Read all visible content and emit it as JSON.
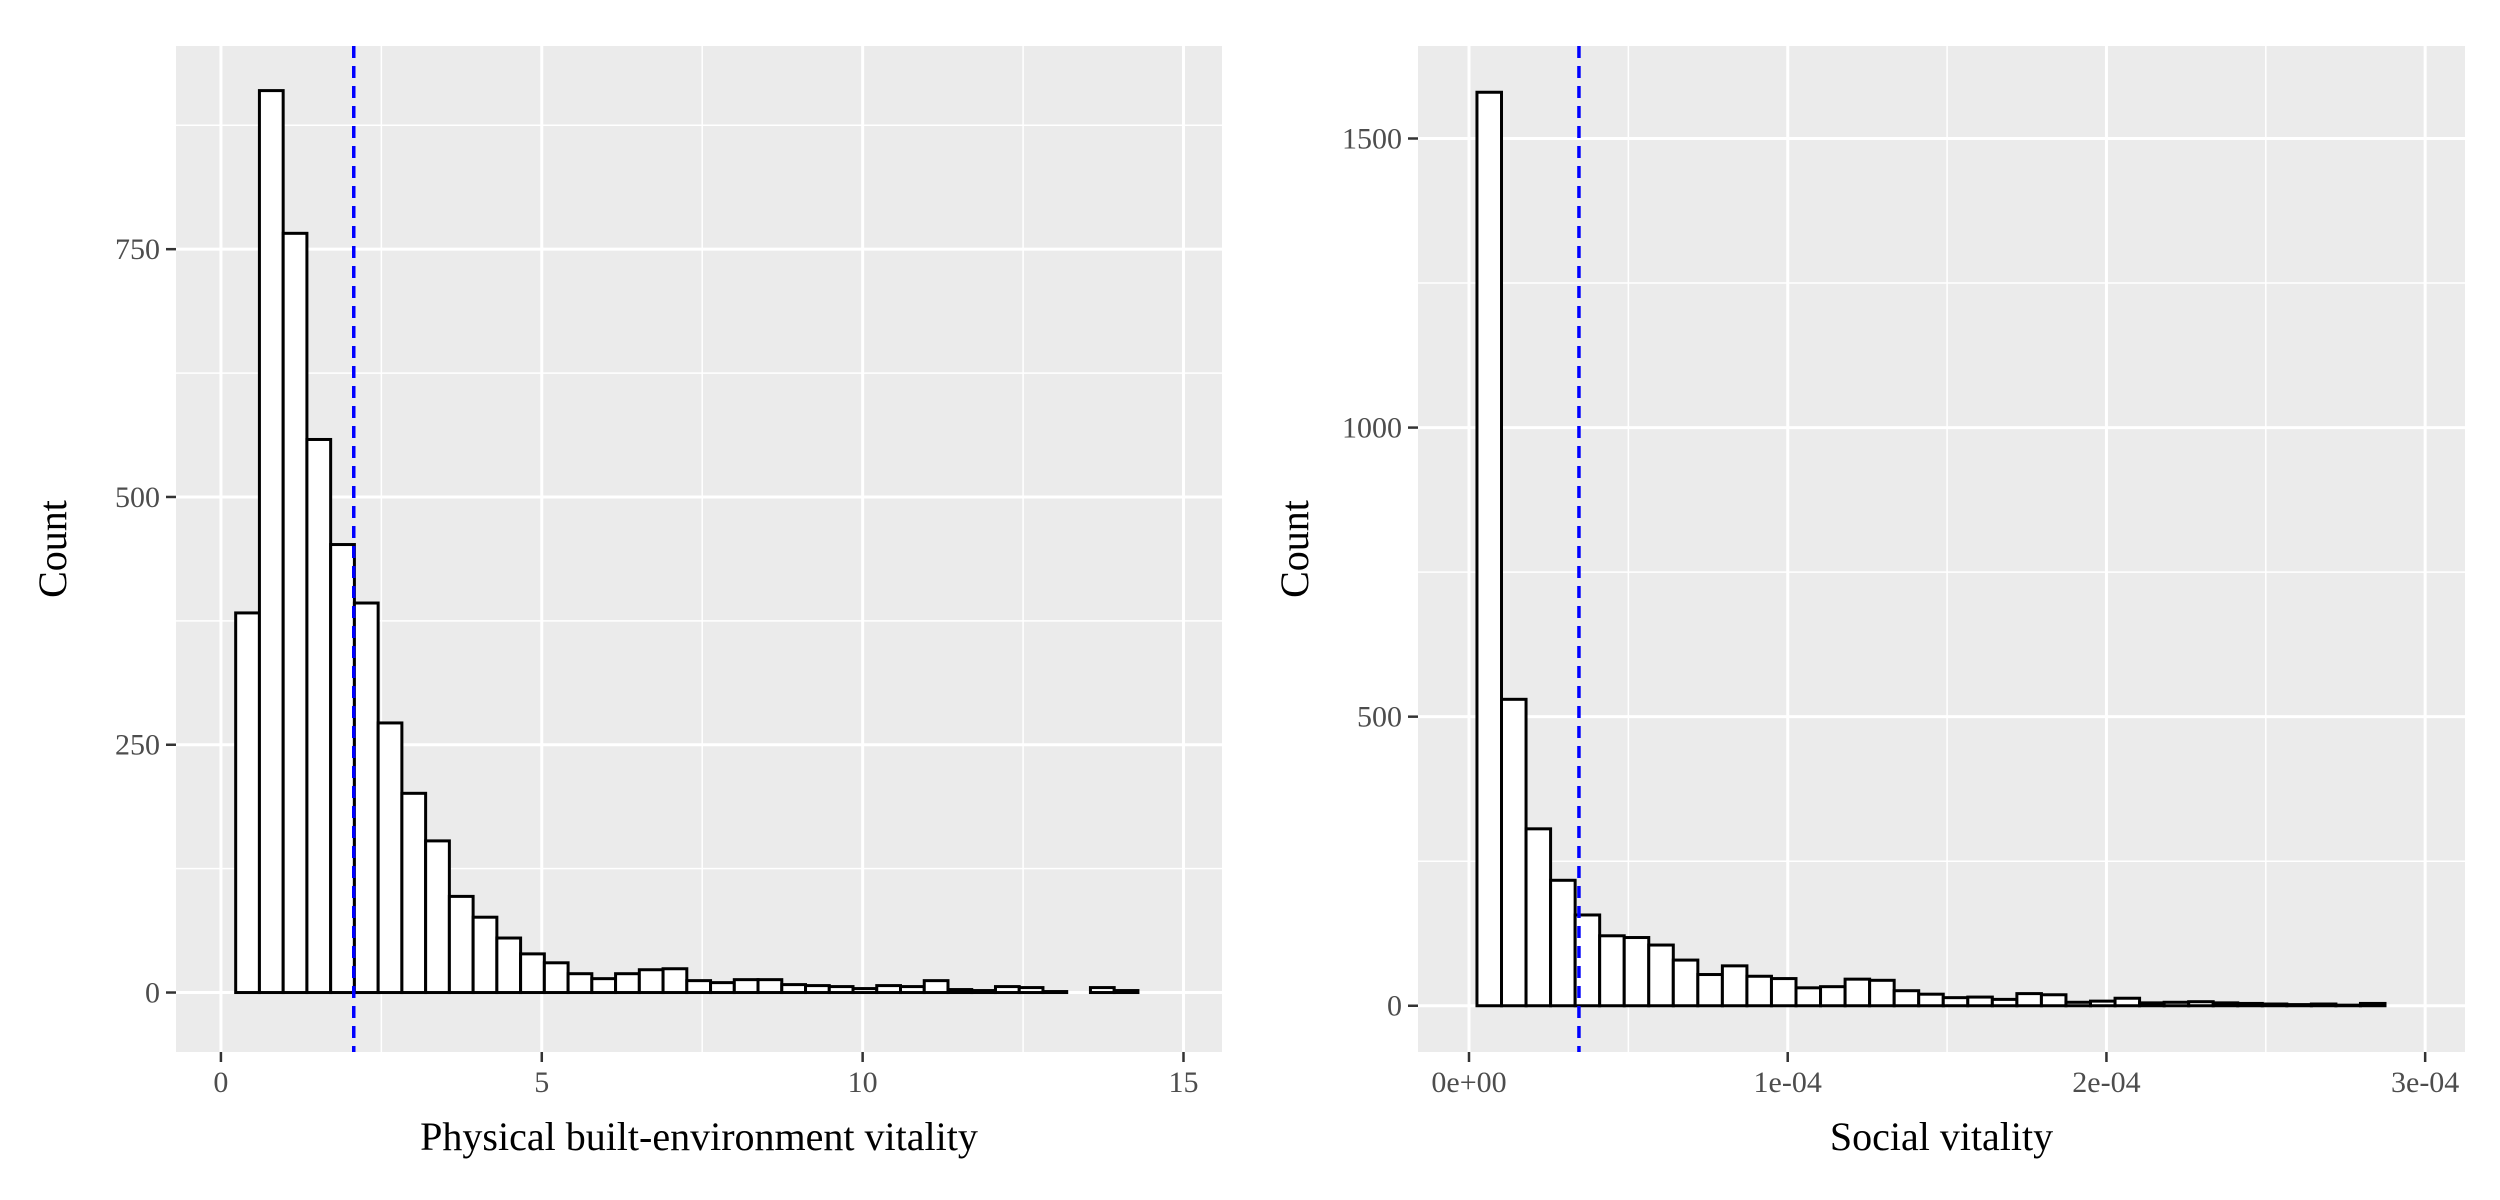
{
  "chart_data": [
    {
      "type": "bar",
      "subtype": "histogram",
      "xlabel": "Physical built-environment vitality",
      "ylabel": "Count",
      "xlim": [
        -0.7,
        15.6
      ],
      "ylim": [
        -60,
        955
      ],
      "x_ticks": [
        0,
        5,
        10,
        15
      ],
      "x_tick_labels": [
        "0",
        "5",
        "10",
        "15"
      ],
      "y_ticks": [
        0,
        250,
        500,
        750
      ],
      "y_tick_labels": [
        "0",
        "250",
        "500",
        "750"
      ],
      "bin_start": 0.23,
      "bin_width": 0.37,
      "values": [
        383,
        910,
        766,
        558,
        452,
        393,
        272,
        201,
        153,
        97,
        76,
        55,
        39,
        30,
        19,
        14,
        19,
        23,
        24,
        12,
        10,
        13,
        13,
        8,
        7,
        6,
        4,
        7,
        6,
        12,
        3,
        2,
        6,
        5,
        1,
        0,
        5,
        2
      ],
      "reference_line": {
        "x": 2.07,
        "style": "dashed",
        "color": "#0000ff"
      },
      "grid": true,
      "panel_background": "#ebebeb",
      "grid_color": "#ffffff",
      "bar_fill": "#ffffff",
      "bar_stroke": "#000000"
    },
    {
      "type": "bar",
      "subtype": "histogram",
      "xlabel": "Social vitality",
      "ylabel": "Count",
      "xlim": [
        -1.6e-05,
        0.0003125
      ],
      "ylim": [
        -80,
        1660
      ],
      "x_ticks": [
        0,
        0.0001,
        0.0002,
        0.0003
      ],
      "x_tick_labels": [
        "0e+00",
        "1e-04",
        "2e-04",
        "3e-04"
      ],
      "y_ticks": [
        0,
        500,
        1000,
        1500
      ],
      "y_tick_labels": [
        "0",
        "500",
        "1000",
        "1500"
      ],
      "bin_start": 2.5e-06,
      "bin_width": 7.7e-06,
      "values": [
        1580,
        530,
        306,
        217,
        157,
        121,
        118,
        105,
        79,
        54,
        69,
        51,
        47,
        31,
        33,
        46,
        44,
        26,
        20,
        14,
        15,
        11,
        21,
        19,
        6,
        8,
        13,
        5,
        6,
        7,
        5,
        4,
        3,
        2,
        3,
        1,
        4,
        0
      ],
      "reference_line": {
        "x": 3.45e-05,
        "style": "dashed",
        "color": "#0000ff"
      },
      "grid": true,
      "panel_background": "#ebebeb",
      "grid_color": "#ffffff",
      "bar_fill": "#ffffff",
      "bar_stroke": "#000000"
    }
  ]
}
